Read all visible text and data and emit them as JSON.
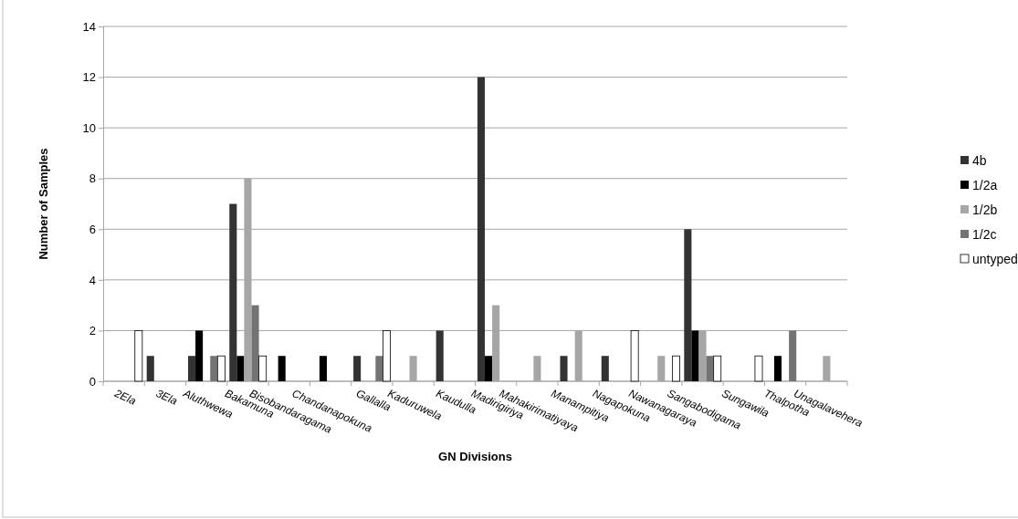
{
  "chart_data": {
    "type": "bar",
    "xlabel": "GN Divisions",
    "ylabel": "Number of Samples",
    "categories": [
      "2Ela",
      "3Ela",
      "Aluthwewa",
      "Bakamuna",
      "Bisobandaragama",
      "Chandanapokuna",
      "Gallalla",
      "Kaduruwela",
      "Kaudulla",
      "Madirigiriya",
      "Mahakirimatiyaya",
      "Manampitiya",
      "Nagapokuna",
      "Nawanagaraya",
      "Sangabodigama",
      "Sungawila",
      "Thalpotha",
      "Unagalavehera"
    ],
    "series": [
      {
        "name": "4b",
        "color": "#333333",
        "values": [
          null,
          1,
          1,
          7,
          null,
          null,
          1,
          null,
          2,
          12,
          null,
          1,
          1,
          null,
          6,
          null,
          null,
          null
        ]
      },
      {
        "name": "1/2a",
        "color": "#000000",
        "values": [
          null,
          null,
          2,
          1,
          1,
          1,
          null,
          null,
          null,
          1,
          null,
          null,
          null,
          null,
          2,
          null,
          1,
          null
        ]
      },
      {
        "name": "1/2b",
        "color": "#a6a6a6",
        "values": [
          null,
          null,
          null,
          8,
          null,
          null,
          null,
          1,
          null,
          3,
          1,
          2,
          null,
          1,
          2,
          null,
          null,
          1
        ]
      },
      {
        "name": "1/2c",
        "color": "#737373",
        "values": [
          null,
          null,
          1,
          3,
          null,
          null,
          1,
          null,
          null,
          null,
          null,
          null,
          null,
          null,
          1,
          null,
          2,
          null
        ]
      },
      {
        "name": "untyped",
        "color": "#ffffff",
        "values": [
          2,
          null,
          1,
          1,
          null,
          null,
          2,
          null,
          null,
          null,
          null,
          null,
          2,
          1,
          1,
          1,
          null,
          null
        ]
      }
    ],
    "ylim": [
      0,
      14
    ],
    "yticks": [
      0,
      2,
      4,
      6,
      8,
      10,
      12,
      14
    ],
    "grid": "y",
    "legend": "right"
  }
}
